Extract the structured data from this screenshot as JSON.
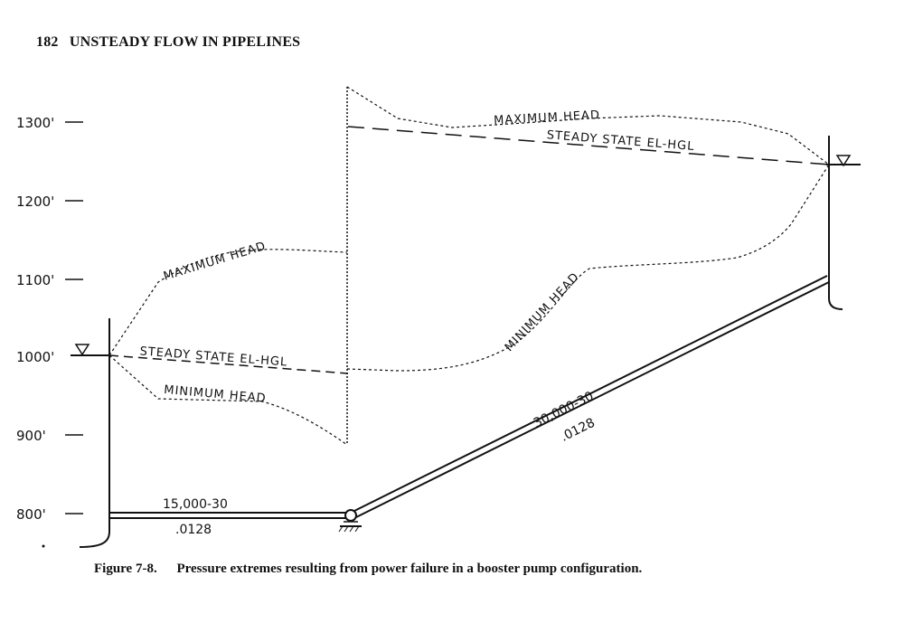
{
  "header": {
    "page_number": "182",
    "running_title": "UNSTEADY FLOW IN PIPELINES"
  },
  "figure": {
    "y_axis": {
      "tick_labels": [
        "1300'",
        "1200'",
        "1100'",
        "1000'",
        "900'",
        "800'"
      ]
    },
    "annotations": {
      "left_maximum_head": "MAXIMUM HEAD",
      "left_steady_state": "STEADY STATE EL-HGL",
      "left_minimum_head": "MINIMUM HEAD",
      "right_maximum_head": "MAXIMUM HEAD",
      "right_steady_state": "STEADY STATE EL-HGL",
      "right_minimum_head": "MINIMUM HEAD"
    },
    "pipes": {
      "lower": {
        "spec": "15,000-30",
        "friction": ".0128"
      },
      "upper": {
        "spec": "30,000-30",
        "friction": ".0128"
      }
    }
  },
  "caption": {
    "label": "Figure 7-8.",
    "text": "Pressure extremes resulting from power failure in a booster pump configuration."
  }
}
